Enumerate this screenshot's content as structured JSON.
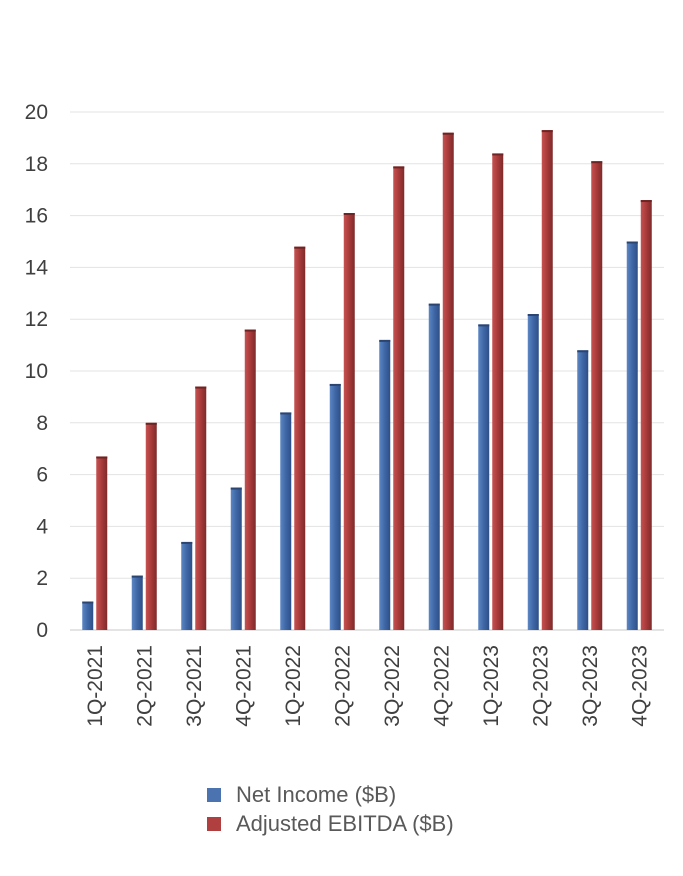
{
  "chart_data": {
    "type": "bar",
    "categories": [
      "1Q-2021",
      "2Q-2021",
      "3Q-2021",
      "4Q-2021",
      "1Q-2022",
      "2Q-2022",
      "3Q-2022",
      "4Q-2022",
      "1Q-2023",
      "2Q-2023",
      "3Q-2023",
      "4Q-2023"
    ],
    "series": [
      {
        "name": "Net Income ($B)",
        "color": "#4a73b0",
        "values": [
          1.1,
          2.1,
          3.4,
          5.5,
          8.4,
          9.5,
          11.2,
          12.6,
          11.8,
          12.2,
          10.8,
          15.0
        ]
      },
      {
        "name": "Adjusted EBITDA ($B)",
        "color": "#b04040",
        "values": [
          6.7,
          8.0,
          9.4,
          11.6,
          14.8,
          16.1,
          17.9,
          19.2,
          18.4,
          19.3,
          18.1,
          16.6
        ]
      }
    ],
    "ylim": [
      0,
      20
    ],
    "yticks": [
      "0",
      "2",
      "4",
      "6",
      "8",
      "10",
      "12",
      "14",
      "16",
      "18",
      "20"
    ],
    "grid": true,
    "legend": "bottom-center"
  }
}
